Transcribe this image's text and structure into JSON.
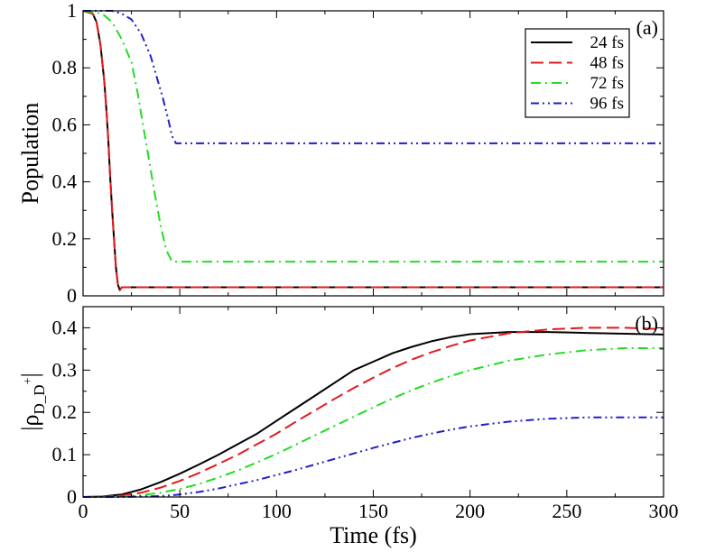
{
  "figure": {
    "xlabel": "Time (fs)"
  },
  "chart_data": [
    {
      "type": "line",
      "panel_label": "(a)",
      "ylabel": "Population",
      "xlim": [
        0,
        300
      ],
      "ylim": [
        0,
        1
      ],
      "xticks": [
        0,
        50,
        100,
        150,
        200,
        250,
        300
      ],
      "yticks": [
        0,
        0.2,
        0.4,
        0.6,
        0.8,
        1
      ],
      "ytick_labels": [
        "0",
        "0.2",
        "0.4",
        "0.6",
        "0.8",
        "1"
      ],
      "grid": false,
      "legend": "top-right",
      "series": [
        {
          "name": "24 fs",
          "color": "#000000",
          "dash": "solid",
          "x": [
            0,
            5,
            7,
            9,
            11,
            12,
            13,
            14,
            15,
            16,
            17,
            18,
            19,
            20,
            25,
            50,
            100,
            150,
            200,
            250,
            300
          ],
          "y": [
            1.0,
            0.99,
            0.96,
            0.88,
            0.75,
            0.66,
            0.55,
            0.42,
            0.3,
            0.2,
            0.1,
            0.04,
            0.02,
            0.03,
            0.03,
            0.03,
            0.03,
            0.03,
            0.03,
            0.03,
            0.03
          ]
        },
        {
          "name": "48 fs",
          "color": "#e41a1c",
          "dash": "dash",
          "x": [
            0,
            5,
            7,
            9,
            11,
            12,
            13,
            14,
            15,
            16,
            17,
            18,
            19,
            20,
            25,
            50,
            100,
            150,
            200,
            250,
            300
          ],
          "y": [
            1.0,
            0.99,
            0.96,
            0.88,
            0.75,
            0.66,
            0.55,
            0.42,
            0.3,
            0.2,
            0.1,
            0.04,
            0.02,
            0.03,
            0.03,
            0.03,
            0.03,
            0.03,
            0.03,
            0.03,
            0.03
          ]
        },
        {
          "name": "72 fs",
          "color": "#22dd22",
          "dash": "dashdot",
          "x": [
            0,
            10,
            15,
            20,
            25,
            28,
            31,
            34,
            37,
            40,
            43,
            46,
            48,
            60,
            100,
            150,
            200,
            250,
            300
          ],
          "y": [
            1.0,
            0.99,
            0.96,
            0.9,
            0.82,
            0.72,
            0.6,
            0.48,
            0.36,
            0.25,
            0.16,
            0.12,
            0.12,
            0.12,
            0.12,
            0.12,
            0.12,
            0.12,
            0.12
          ]
        },
        {
          "name": "96 fs",
          "color": "#1f1fcc",
          "dash": "dashdotdot",
          "x": [
            0,
            15,
            20,
            25,
            30,
            35,
            38,
            41,
            44,
            46,
            48,
            60,
            100,
            150,
            200,
            250,
            300
          ],
          "y": [
            1.0,
            1.0,
            0.99,
            0.97,
            0.92,
            0.84,
            0.77,
            0.7,
            0.62,
            0.56,
            0.535,
            0.535,
            0.535,
            0.535,
            0.535,
            0.535,
            0.535
          ]
        }
      ]
    },
    {
      "type": "line",
      "panel_label": "(b)",
      "ylabel": "|ρ",
      "ylabel_sub": "D_D",
      "ylabel_sup": "+",
      "ylabel_end": "|",
      "xlim": [
        0,
        300
      ],
      "ylim": [
        0,
        0.45
      ],
      "xticks": [
        0,
        50,
        100,
        150,
        200,
        250,
        300
      ],
      "xtick_labels": [
        "0",
        "50",
        "100",
        "150",
        "200",
        "250",
        "300"
      ],
      "yticks": [
        0,
        0.1,
        0.2,
        0.3,
        0.4
      ],
      "ytick_labels": [
        "0",
        "0.1",
        "0.2",
        "0.3",
        "0.4"
      ],
      "grid": false,
      "series": [
        {
          "color": "#000000",
          "dash": "solid",
          "x": [
            0,
            10,
            20,
            30,
            40,
            50,
            60,
            70,
            80,
            90,
            100,
            110,
            120,
            130,
            140,
            150,
            160,
            170,
            180,
            190,
            200,
            220,
            240,
            260,
            280,
            300
          ],
          "y": [
            0,
            0.001,
            0.006,
            0.018,
            0.035,
            0.055,
            0.077,
            0.1,
            0.125,
            0.15,
            0.18,
            0.21,
            0.24,
            0.27,
            0.3,
            0.32,
            0.34,
            0.355,
            0.368,
            0.378,
            0.385,
            0.39,
            0.39,
            0.388,
            0.386,
            0.384
          ]
        },
        {
          "color": "#e41a1c",
          "dash": "dash",
          "x": [
            0,
            10,
            20,
            30,
            40,
            50,
            60,
            70,
            80,
            90,
            100,
            110,
            120,
            130,
            140,
            150,
            160,
            170,
            180,
            190,
            200,
            220,
            240,
            260,
            280,
            300
          ],
          "y": [
            0,
            0.0005,
            0.003,
            0.01,
            0.022,
            0.038,
            0.057,
            0.078,
            0.1,
            0.125,
            0.15,
            0.178,
            0.205,
            0.232,
            0.258,
            0.282,
            0.305,
            0.325,
            0.342,
            0.357,
            0.37,
            0.387,
            0.396,
            0.4,
            0.4,
            0.397
          ]
        },
        {
          "color": "#22dd22",
          "dash": "dashdot",
          "x": [
            0,
            10,
            20,
            30,
            40,
            50,
            60,
            70,
            80,
            90,
            100,
            110,
            120,
            130,
            140,
            150,
            160,
            170,
            180,
            190,
            200,
            220,
            240,
            260,
            280,
            300
          ],
          "y": [
            0,
            0,
            0.001,
            0.004,
            0.01,
            0.019,
            0.031,
            0.046,
            0.063,
            0.082,
            0.102,
            0.124,
            0.146,
            0.168,
            0.19,
            0.212,
            0.233,
            0.253,
            0.27,
            0.286,
            0.3,
            0.322,
            0.337,
            0.347,
            0.352,
            0.352
          ]
        },
        {
          "color": "#1f1fcc",
          "dash": "dashdotdot",
          "x": [
            0,
            10,
            20,
            30,
            40,
            50,
            60,
            70,
            80,
            90,
            100,
            110,
            120,
            130,
            140,
            150,
            160,
            170,
            180,
            190,
            200,
            220,
            240,
            260,
            280,
            300
          ],
          "y": [
            0,
            0,
            0,
            0.001,
            0.002,
            0.006,
            0.012,
            0.02,
            0.03,
            0.04,
            0.052,
            0.064,
            0.077,
            0.09,
            0.103,
            0.116,
            0.128,
            0.14,
            0.15,
            0.159,
            0.167,
            0.178,
            0.185,
            0.188,
            0.188,
            0.188
          ]
        }
      ]
    }
  ]
}
